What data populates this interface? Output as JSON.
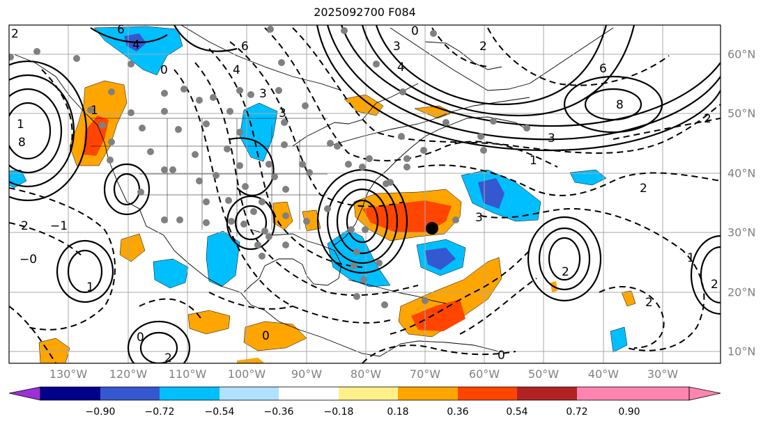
{
  "title": "2025092700 F084",
  "longitude_labels": [
    "130°W",
    "120°W",
    "110°W",
    "100°W",
    "90°W",
    "80°W",
    "70°W",
    "60°W",
    "50°W",
    "40°W",
    "30°W"
  ],
  "latitude_labels": [
    "60°N",
    "50°N",
    "40°N",
    "30°N",
    "20°N",
    "10°N"
  ],
  "colorbar": {
    "ticks": [
      "−0.90",
      "−0.72",
      "−0.54",
      "−0.36",
      "−0.18",
      "0.18",
      "0.36",
      "0.54",
      "0.72",
      "0.90"
    ],
    "colors": [
      "#9b30d9",
      "#00008b",
      "#3557d0",
      "#00bfff",
      "#b0e2ff",
      "#ffffff",
      "#fff08a",
      "#ffa500",
      "#ff4500",
      "#b22222",
      "#ff85b0"
    ]
  },
  "contour_labels": [
    "2",
    "4",
    "6",
    "8",
    "0",
    "−0",
    "1",
    "−1",
    "2",
    "3",
    "6",
    "4",
    "3",
    "3",
    "8",
    "6",
    "2",
    "3",
    "2",
    "1",
    "0",
    "2",
    "1",
    "3",
    "2",
    "0",
    "1",
    "2",
    "0",
    "2",
    "0",
    "1",
    "2",
    "4"
  ],
  "colors": {
    "positive_contour": "#000000",
    "grid": "#a9a9a9",
    "station_marker": "#808080",
    "storm_center": "#000000",
    "label_gray": "#808080"
  }
}
